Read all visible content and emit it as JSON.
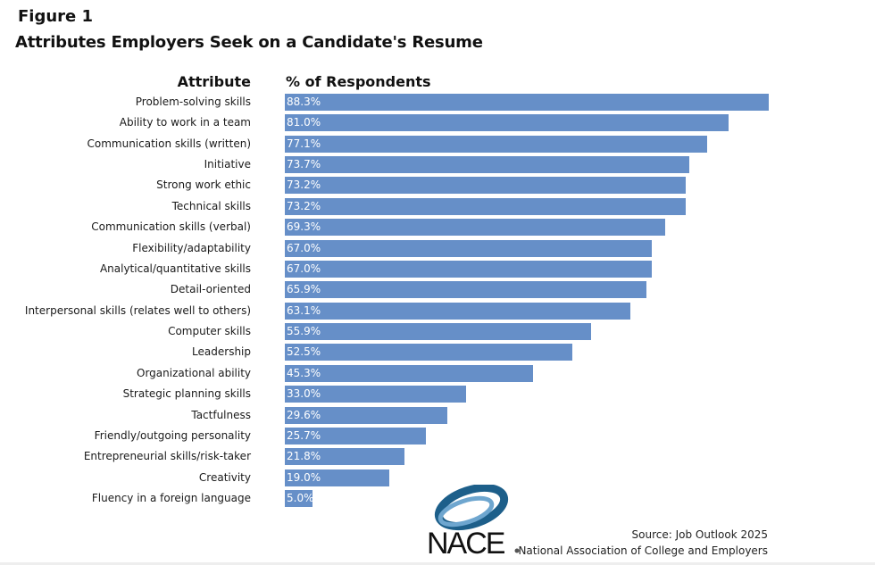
{
  "chart_data": {
    "type": "bar",
    "orientation": "horizontal",
    "figure_label": "Figure 1",
    "title": "Attributes Employers Seek on a Candidate's Resume",
    "xlabel": "% of Respondents",
    "ylabel": "Attribute",
    "xlim": [
      0,
      100
    ],
    "grid": false,
    "categories": [
      "Problem-solving skills",
      "Ability to work in a team",
      "Communication skills (written)",
      "Initiative",
      "Strong work ethic",
      "Technical skills",
      "Communication skills (verbal)",
      "Flexibility/adaptability",
      "Analytical/quantitative skills",
      "Detail-oriented",
      "Interpersonal skills (relates well to others)",
      "Computer skills",
      "Leadership",
      "Organizational ability",
      "Strategic planning skills",
      "Tactfulness",
      "Friendly/outgoing personality",
      "Entrepreneurial skills/risk-taker",
      "Creativity",
      "Fluency in a foreign language"
    ],
    "values": [
      88.3,
      81.0,
      77.1,
      73.7,
      73.2,
      73.2,
      69.3,
      67.0,
      67.0,
      65.9,
      63.1,
      55.9,
      52.5,
      45.3,
      33.0,
      29.6,
      25.7,
      21.8,
      19.0,
      5.0
    ],
    "value_labels": [
      "88.3%",
      "81.0%",
      "77.1%",
      "73.7%",
      "73.2%",
      "73.2%",
      "69.3%",
      "67.0%",
      "67.0%",
      "65.9%",
      "63.1%",
      "55.9%",
      "52.5%",
      "45.3%",
      "33.0%",
      "29.6%",
      "25.7%",
      "21.8%",
      "19.0%",
      "5.0%"
    ],
    "bar_color": "#668fc8"
  },
  "source": {
    "line1": "Source:  Job Outlook 2025",
    "line2": "National Association of College and Employers"
  },
  "logo": {
    "text": "NACE",
    "color": "#1d5f8a"
  }
}
